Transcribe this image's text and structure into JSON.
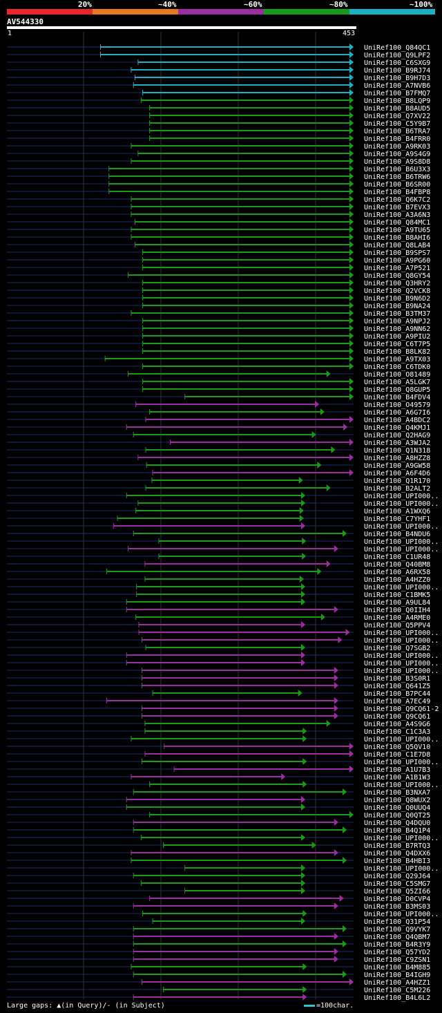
{
  "legend": {
    "labels": [
      "20%",
      "~40%",
      "~60%",
      "~80%",
      "~100%"
    ],
    "colors": [
      "#e8262b",
      "#e8781e",
      "#9b2ea0",
      "#1a9a1a",
      "#1ab2c2"
    ]
  },
  "query": {
    "id": "AV544330",
    "start": "1",
    "end": "453",
    "length": 453
  },
  "footer": {
    "gaps_text": "Large gaps: ▲(in Query)/- (in Subject)",
    "scale_text": "=100char."
  },
  "chart_data": {
    "type": "alignment-overview",
    "title": "AV544330",
    "xlim": [
      1,
      453
    ],
    "identity_bins": [
      "20%",
      "~40%",
      "~60%",
      "~80%",
      "~100%"
    ],
    "hits": [
      {
        "name": "UniRef100_Q84QC1",
        "start": 123,
        "end": 453,
        "identity": "~100%"
      },
      {
        "name": "UniRef100_Q9LPF2",
        "start": 123,
        "end": 453,
        "identity": "~100%"
      },
      {
        "name": "UniRef100_C6SXG9",
        "start": 172,
        "end": 453,
        "identity": "~100%"
      },
      {
        "name": "UniRef100_B9RJ74",
        "start": 163,
        "end": 453,
        "identity": "~100%"
      },
      {
        "name": "UniRef100_B9H7D3",
        "start": 168,
        "end": 453,
        "identity": "~100%"
      },
      {
        "name": "UniRef100_A7NVB6",
        "start": 166,
        "end": 453,
        "identity": "~100%"
      },
      {
        "name": "UniRef100_B7FMQ7",
        "start": 178,
        "end": 453,
        "identity": "~100%"
      },
      {
        "name": "UniRef100_B8LQP9",
        "start": 176,
        "end": 453,
        "identity": "~80%"
      },
      {
        "name": "UniRef100_B8AUD5",
        "start": 187,
        "end": 453,
        "identity": "~80%"
      },
      {
        "name": "UniRef100_Q7XV22",
        "start": 187,
        "end": 453,
        "identity": "~80%"
      },
      {
        "name": "UniRef100_C5Y9B7",
        "start": 187,
        "end": 453,
        "identity": "~80%"
      },
      {
        "name": "UniRef100_B6TRA7",
        "start": 187,
        "end": 453,
        "identity": "~80%"
      },
      {
        "name": "UniRef100_B4FRR0",
        "start": 187,
        "end": 453,
        "identity": "~80%"
      },
      {
        "name": "UniRef100_A9RK03",
        "start": 163,
        "end": 453,
        "identity": "~80%"
      },
      {
        "name": "UniRef100_A9S4G9",
        "start": 172,
        "end": 453,
        "identity": "~80%"
      },
      {
        "name": "UniRef100_A9S8D8",
        "start": 163,
        "end": 453,
        "identity": "~80%"
      },
      {
        "name": "UniRef100_B6U3X3",
        "start": 134,
        "end": 453,
        "identity": "~80%"
      },
      {
        "name": "UniRef100_B6TRW6",
        "start": 134,
        "end": 453,
        "identity": "~80%"
      },
      {
        "name": "UniRef100_B6SR00",
        "start": 134,
        "end": 453,
        "identity": "~80%"
      },
      {
        "name": "UniRef100_B4FBP8",
        "start": 134,
        "end": 453,
        "identity": "~80%"
      },
      {
        "name": "UniRef100_Q6K7C2",
        "start": 163,
        "end": 453,
        "identity": "~80%"
      },
      {
        "name": "UniRef100_B7EVX3",
        "start": 163,
        "end": 453,
        "identity": "~80%"
      },
      {
        "name": "UniRef100_A3A6N3",
        "start": 163,
        "end": 453,
        "identity": "~80%"
      },
      {
        "name": "UniRef100_Q84MC1",
        "start": 168,
        "end": 453,
        "identity": "~80%"
      },
      {
        "name": "UniRef100_A9TU65",
        "start": 163,
        "end": 453,
        "identity": "~80%"
      },
      {
        "name": "UniRef100_B8AHI6",
        "start": 163,
        "end": 453,
        "identity": "~80%"
      },
      {
        "name": "UniRef100_Q8LAB4",
        "start": 168,
        "end": 453,
        "identity": "~80%"
      },
      {
        "name": "UniRef100_B9SPS7",
        "start": 178,
        "end": 453,
        "identity": "~80%"
      },
      {
        "name": "UniRef100_A9PG60",
        "start": 178,
        "end": 453,
        "identity": "~80%"
      },
      {
        "name": "UniRef100_A7P521",
        "start": 178,
        "end": 453,
        "identity": "~80%"
      },
      {
        "name": "UniRef100_Q8GY54",
        "start": 159,
        "end": 453,
        "identity": "~80%"
      },
      {
        "name": "UniRef100_Q3HRY2",
        "start": 178,
        "end": 453,
        "identity": "~80%"
      },
      {
        "name": "UniRef100_Q2VCK8",
        "start": 178,
        "end": 453,
        "identity": "~80%"
      },
      {
        "name": "UniRef100_B9N6D2",
        "start": 178,
        "end": 453,
        "identity": "~80%"
      },
      {
        "name": "UniRef100_B9NA24",
        "start": 178,
        "end": 453,
        "identity": "~80%"
      },
      {
        "name": "UniRef100_B3TM37",
        "start": 163,
        "end": 453,
        "identity": "~80%"
      },
      {
        "name": "UniRef100_A9NPJ2",
        "start": 178,
        "end": 453,
        "identity": "~80%"
      },
      {
        "name": "UniRef100_A9NN62",
        "start": 178,
        "end": 453,
        "identity": "~80%"
      },
      {
        "name": "UniRef100_A9PIU2",
        "start": 178,
        "end": 453,
        "identity": "~80%"
      },
      {
        "name": "UniRef100_C6T7P5",
        "start": 178,
        "end": 453,
        "identity": "~80%"
      },
      {
        "name": "UniRef100_B8LK82",
        "start": 178,
        "end": 453,
        "identity": "~80%"
      },
      {
        "name": "UniRef100_A9TX03",
        "start": 129,
        "end": 453,
        "identity": "~80%"
      },
      {
        "name": "UniRef100_C6TDK0",
        "start": 178,
        "end": 453,
        "identity": "~80%"
      },
      {
        "name": "UniRef100_O81489",
        "start": 159,
        "end": 423,
        "identity": "~80%"
      },
      {
        "name": "UniRef100_A5LGK7",
        "start": 178,
        "end": 453,
        "identity": "~80%"
      },
      {
        "name": "UniRef100_Q8GUP5",
        "start": 178,
        "end": 453,
        "identity": "~80%"
      },
      {
        "name": "UniRef100_B4FDV4",
        "start": 233,
        "end": 453,
        "identity": "~80%"
      },
      {
        "name": "UniRef100_O49579",
        "start": 169,
        "end": 408,
        "identity": "~60%"
      },
      {
        "name": "UniRef100_A6G7I6",
        "start": 187,
        "end": 415,
        "identity": "~80%"
      },
      {
        "name": "UniRef100_A4BDC2",
        "start": 182,
        "end": 453,
        "identity": "~60%"
      },
      {
        "name": "UniRef100_Q4KMJ1",
        "start": 157,
        "end": 445,
        "identity": "~60%"
      },
      {
        "name": "UniRef100_Q2HAG9",
        "start": 166,
        "end": 404,
        "identity": "~80%"
      },
      {
        "name": "UniRef100_A3WJA2",
        "start": 214,
        "end": 453,
        "identity": "~60%"
      },
      {
        "name": "UniRef100_Q1N318",
        "start": 182,
        "end": 429,
        "identity": "~80%"
      },
      {
        "name": "UniRef100_A8HZZ8",
        "start": 172,
        "end": 453,
        "identity": "~60%"
      },
      {
        "name": "UniRef100_A9GW58",
        "start": 183,
        "end": 411,
        "identity": "~80%"
      },
      {
        "name": "UniRef100_A6F4D6",
        "start": 191,
        "end": 453,
        "identity": "~60%"
      },
      {
        "name": "UniRef100_Q1R170",
        "start": 190,
        "end": 387,
        "identity": "~80%"
      },
      {
        "name": "UniRef100_B2ALT2",
        "start": 182,
        "end": 423,
        "identity": "~80%"
      },
      {
        "name": "UniRef100_UPI000..",
        "start": 157,
        "end": 390,
        "identity": "~80%"
      },
      {
        "name": "UniRef100_UPI000..",
        "start": 172,
        "end": 390,
        "identity": "~80%"
      },
      {
        "name": "UniRef100_A1WXQ6",
        "start": 169,
        "end": 388,
        "identity": "~80%"
      },
      {
        "name": "UniRef100_C7YHF1",
        "start": 145,
        "end": 388,
        "identity": "~80%"
      },
      {
        "name": "UniRef100_UPI000..",
        "start": 140,
        "end": 390,
        "identity": "~60%"
      },
      {
        "name": "UniRef100_B4NDU6",
        "start": 166,
        "end": 444,
        "identity": "~80%"
      },
      {
        "name": "UniRef100_UPI000..",
        "start": 199,
        "end": 391,
        "identity": "~80%"
      },
      {
        "name": "UniRef100_UPI000..",
        "start": 159,
        "end": 433,
        "identity": "~60%"
      },
      {
        "name": "UniRef100_C1UR48",
        "start": 199,
        "end": 391,
        "identity": "~80%"
      },
      {
        "name": "UniRef100_Q40BM8",
        "start": 181,
        "end": 423,
        "identity": "~60%"
      },
      {
        "name": "UniRef100_A6RX58",
        "start": 131,
        "end": 411,
        "identity": "~80%"
      },
      {
        "name": "UniRef100_A4HZZ0",
        "start": 181,
        "end": 388,
        "identity": "~80%"
      },
      {
        "name": "UniRef100_UPI000..",
        "start": 170,
        "end": 390,
        "identity": "~80%"
      },
      {
        "name": "UniRef100_C1BMK5",
        "start": 170,
        "end": 390,
        "identity": "~80%"
      },
      {
        "name": "UniRef100_A9UL84",
        "start": 157,
        "end": 390,
        "identity": "~80%"
      },
      {
        "name": "UniRef100_Q0IIH4",
        "start": 157,
        "end": 433,
        "identity": "~60%"
      },
      {
        "name": "UniRef100_A4RME0",
        "start": 169,
        "end": 416,
        "identity": "~80%"
      },
      {
        "name": "UniRef100_Q5PPV4",
        "start": 173,
        "end": 390,
        "identity": "~60%"
      },
      {
        "name": "UniRef100_UPI000..",
        "start": 173,
        "end": 448,
        "identity": "~60%"
      },
      {
        "name": "UniRef100_UPI000..",
        "start": 177,
        "end": 438,
        "identity": "~60%"
      },
      {
        "name": "UniRef100_Q7SGB2",
        "start": 182,
        "end": 390,
        "identity": "~80%"
      },
      {
        "name": "UniRef100_UPI000..",
        "start": 157,
        "end": 390,
        "identity": "~60%"
      },
      {
        "name": "UniRef100_UPI000..",
        "start": 157,
        "end": 390,
        "identity": "~60%"
      },
      {
        "name": "UniRef100_UPI000..",
        "start": 177,
        "end": 433,
        "identity": "~60%"
      },
      {
        "name": "UniRef100_B3S0R1",
        "start": 177,
        "end": 433,
        "identity": "~60%"
      },
      {
        "name": "UniRef100_Q641Z5",
        "start": 177,
        "end": 433,
        "identity": "~60%"
      },
      {
        "name": "UniRef100_B7PC44",
        "start": 191,
        "end": 386,
        "identity": "~80%"
      },
      {
        "name": "UniRef100_A7EC49",
        "start": 131,
        "end": 433,
        "identity": "~60%"
      },
      {
        "name": "UniRef100_Q9CQ61-2",
        "start": 177,
        "end": 433,
        "identity": "~60%"
      },
      {
        "name": "UniRef100_Q9CQ61",
        "start": 177,
        "end": 433,
        "identity": "~60%"
      },
      {
        "name": "UniRef100_A4S9G6",
        "start": 181,
        "end": 423,
        "identity": "~80%"
      },
      {
        "name": "UniRef100_C1C3A3",
        "start": 181,
        "end": 392,
        "identity": "~80%"
      },
      {
        "name": "UniRef100_UPI000..",
        "start": 163,
        "end": 392,
        "identity": "~80%"
      },
      {
        "name": "UniRef100_Q5QV10",
        "start": 206,
        "end": 453,
        "identity": "~60%"
      },
      {
        "name": "UniRef100_C1E7D8",
        "start": 181,
        "end": 453,
        "identity": "~60%"
      },
      {
        "name": "UniRef100_UPI000..",
        "start": 177,
        "end": 392,
        "identity": "~80%"
      },
      {
        "name": "UniRef100_A1U7B3",
        "start": 219,
        "end": 453,
        "identity": "~60%"
      },
      {
        "name": "UniRef100_A1B1W3",
        "start": 163,
        "end": 364,
        "identity": "~60%"
      },
      {
        "name": "UniRef100_UPI000..",
        "start": 187,
        "end": 392,
        "identity": "~80%"
      },
      {
        "name": "UniRef100_B3NXA7",
        "start": 166,
        "end": 444,
        "identity": "~80%"
      },
      {
        "name": "UniRef100_Q8WUX2",
        "start": 157,
        "end": 390,
        "identity": "~60%"
      },
      {
        "name": "UniRef100_Q0UUQ4",
        "start": 157,
        "end": 390,
        "identity": "~80%"
      },
      {
        "name": "UniRef100_Q0QT25",
        "start": 187,
        "end": 453,
        "identity": "~80%"
      },
      {
        "name": "UniRef100_Q4DQU0",
        "start": 166,
        "end": 433,
        "identity": "~60%"
      },
      {
        "name": "UniRef100_B4Q1P4",
        "start": 166,
        "end": 444,
        "identity": "~80%"
      },
      {
        "name": "UniRef100_UPI000..",
        "start": 176,
        "end": 390,
        "identity": "~80%"
      },
      {
        "name": "UniRef100_B7RTQ3",
        "start": 205,
        "end": 404,
        "identity": "~80%"
      },
      {
        "name": "UniRef100_Q4DXX6",
        "start": 163,
        "end": 433,
        "identity": "~60%"
      },
      {
        "name": "UniRef100_B4HBI3",
        "start": 163,
        "end": 444,
        "identity": "~80%"
      },
      {
        "name": "UniRef100_UPI000..",
        "start": 233,
        "end": 390,
        "identity": "~80%"
      },
      {
        "name": "UniRef100_Q29J64",
        "start": 166,
        "end": 390,
        "identity": "~80%"
      },
      {
        "name": "UniRef100_C5SMG7",
        "start": 176,
        "end": 390,
        "identity": "~80%"
      },
      {
        "name": "UniRef100_Q5ZI66",
        "start": 233,
        "end": 390,
        "identity": "~80%"
      },
      {
        "name": "UniRef100_D0CVP4",
        "start": 187,
        "end": 440,
        "identity": "~60%"
      },
      {
        "name": "UniRef100_B3MS03",
        "start": 166,
        "end": 433,
        "identity": "~60%"
      },
      {
        "name": "UniRef100_UPI000..",
        "start": 178,
        "end": 392,
        "identity": "~80%"
      },
      {
        "name": "UniRef100_Q31P54",
        "start": 191,
        "end": 390,
        "identity": "~80%"
      },
      {
        "name": "UniRef100_Q9VYK7",
        "start": 166,
        "end": 444,
        "identity": "~80%"
      },
      {
        "name": "UniRef100_Q4QBM7",
        "start": 166,
        "end": 433,
        "identity": "~60%"
      },
      {
        "name": "UniRef100_B4R3Y9",
        "start": 166,
        "end": 444,
        "identity": "~80%"
      },
      {
        "name": "UniRef100_Q57YD2",
        "start": 166,
        "end": 433,
        "identity": "~60%"
      },
      {
        "name": "UniRef100_C9ZSN1",
        "start": 166,
        "end": 433,
        "identity": "~60%"
      },
      {
        "name": "UniRef100_B4M885",
        "start": 163,
        "end": 392,
        "identity": "~80%"
      },
      {
        "name": "UniRef100_B4IGH9",
        "start": 166,
        "end": 444,
        "identity": "~80%"
      },
      {
        "name": "UniRef100_A4HZZ1",
        "start": 177,
        "end": 453,
        "identity": "~60%"
      },
      {
        "name": "UniRef100_C5M226",
        "start": 205,
        "end": 392,
        "identity": "~80%"
      },
      {
        "name": "UniRef100_B4L6L2",
        "start": 166,
        "end": 392,
        "identity": "~60%"
      }
    ]
  }
}
